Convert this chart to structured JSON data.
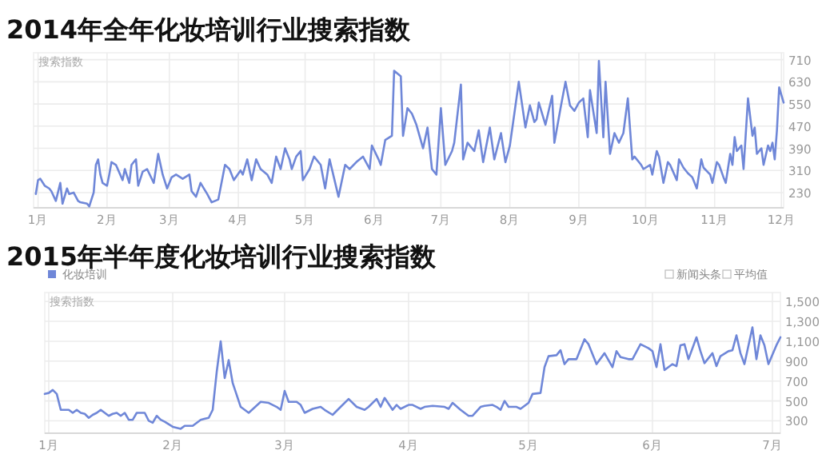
{
  "chart_data": [
    {
      "type": "line",
      "title": "2014年全年化妆培训行业搜索指数",
      "ylabel": "搜索指数",
      "grid": true,
      "xlim": [
        "2013-12-30",
        "2014-12-02"
      ],
      "ylim": [
        175,
        735
      ],
      "xticks": [
        {
          "value": "2014-01-01",
          "label": "1月"
        },
        {
          "value": "2014-02-01",
          "label": "2月"
        },
        {
          "value": "2014-03-01",
          "label": "3月"
        },
        {
          "value": "2014-04-01",
          "label": "4月"
        },
        {
          "value": "2014-05-01",
          "label": "5月"
        },
        {
          "value": "2014-06-01",
          "label": "6月"
        },
        {
          "value": "2014-07-01",
          "label": "7月"
        },
        {
          "value": "2014-08-01",
          "label": "8月"
        },
        {
          "value": "2014-09-01",
          "label": "9月"
        },
        {
          "value": "2014-10-01",
          "label": "10月"
        },
        {
          "value": "2014-11-01",
          "label": "11月"
        },
        {
          "value": "2014-12-01",
          "label": "12月"
        }
      ],
      "yticks": [
        230,
        310,
        390,
        470,
        550,
        630,
        710
      ],
      "x": [
        "2013-12-31",
        "2014-01-01",
        "2014-01-02",
        "2014-01-04",
        "2014-01-06",
        "2014-01-07",
        "2014-01-09",
        "2014-01-11",
        "2014-01-12",
        "2014-01-14",
        "2014-01-15",
        "2014-01-17",
        "2014-01-19",
        "2014-01-20",
        "2014-01-23",
        "2014-01-24",
        "2014-01-26",
        "2014-01-27",
        "2014-01-28",
        "2014-01-29",
        "2014-01-30",
        "2014-02-01",
        "2014-02-02",
        "2014-02-03",
        "2014-02-05",
        "2014-02-08",
        "2014-02-09",
        "2014-02-11",
        "2014-02-12",
        "2014-02-14",
        "2014-02-15",
        "2014-02-17",
        "2014-02-19",
        "2014-02-22",
        "2014-02-24",
        "2014-02-26",
        "2014-02-28",
        "2014-03-02",
        "2014-03-04",
        "2014-03-07",
        "2014-03-10",
        "2014-03-11",
        "2014-03-13",
        "2014-03-15",
        "2014-03-18",
        "2014-03-20",
        "2014-03-23",
        "2014-03-26",
        "2014-03-28",
        "2014-03-30",
        "2014-04-02",
        "2014-04-03",
        "2014-04-05",
        "2014-04-07",
        "2014-04-09",
        "2014-04-11",
        "2014-04-14",
        "2014-04-16",
        "2014-04-18",
        "2014-04-20",
        "2014-04-22",
        "2014-04-24",
        "2014-04-25",
        "2014-04-27",
        "2014-04-29",
        "2014-04-30",
        "2014-05-03",
        "2014-05-05",
        "2014-05-08",
        "2014-05-10",
        "2014-05-12",
        "2014-05-16",
        "2014-05-19",
        "2014-05-21",
        "2014-05-24",
        "2014-05-27",
        "2014-05-30",
        "2014-05-31",
        "2014-06-03",
        "2014-06-04",
        "2014-06-06",
        "2014-06-09",
        "2014-06-10",
        "2014-06-13",
        "2014-06-14",
        "2014-06-16",
        "2014-06-18",
        "2014-06-20",
        "2014-06-23",
        "2014-06-25",
        "2014-06-27",
        "2014-06-29",
        "2014-07-01",
        "2014-07-03",
        "2014-07-06",
        "2014-07-07",
        "2014-07-10",
        "2014-07-11",
        "2014-07-13",
        "2014-07-16",
        "2014-07-18",
        "2014-07-20",
        "2014-07-23",
        "2014-07-25",
        "2014-07-28",
        "2014-07-30",
        "2014-08-01",
        "2014-08-03",
        "2014-08-05",
        "2014-08-08",
        "2014-08-10",
        "2014-08-12",
        "2014-08-13",
        "2014-08-14",
        "2014-08-17",
        "2014-08-20",
        "2014-08-21",
        "2014-08-24",
        "2014-08-26",
        "2014-08-28",
        "2014-08-30",
        "2014-09-01",
        "2014-09-03",
        "2014-09-05",
        "2014-09-06",
        "2014-09-09",
        "2014-09-10",
        "2014-09-12",
        "2014-09-13",
        "2014-09-15",
        "2014-09-17",
        "2014-09-19",
        "2014-09-21",
        "2014-09-23",
        "2014-09-25",
        "2014-09-26",
        "2014-09-29",
        "2014-09-30",
        "2014-10-03",
        "2014-10-04",
        "2014-10-06",
        "2014-10-07",
        "2014-10-09",
        "2014-10-11",
        "2014-10-12",
        "2014-10-15",
        "2014-10-16",
        "2014-10-18",
        "2014-10-20",
        "2014-10-22",
        "2014-10-24",
        "2014-10-26",
        "2014-10-27",
        "2014-10-30",
        "2014-10-31",
        "2014-11-02",
        "2014-11-03",
        "2014-11-05",
        "2014-11-06",
        "2014-11-08",
        "2014-11-09",
        "2014-11-10",
        "2014-11-11",
        "2014-11-13",
        "2014-11-14",
        "2014-11-16",
        "2014-11-18",
        "2014-11-19",
        "2014-11-20",
        "2014-11-22",
        "2014-11-23",
        "2014-11-25",
        "2014-11-26",
        "2014-11-27",
        "2014-11-28",
        "2014-11-29",
        "2014-11-30",
        "2014-12-02"
      ],
      "series": [
        {
          "color": "#6f87d8",
          "values": [
            225,
            275,
            280,
            255,
            245,
            235,
            200,
            265,
            190,
            245,
            225,
            230,
            200,
            195,
            190,
            180,
            230,
            330,
            350,
            295,
            265,
            255,
            295,
            340,
            330,
            275,
            315,
            265,
            330,
            350,
            255,
            305,
            315,
            265,
            370,
            295,
            245,
            285,
            295,
            280,
            295,
            235,
            215,
            265,
            225,
            195,
            205,
            330,
            315,
            275,
            310,
            295,
            350,
            275,
            350,
            315,
            295,
            265,
            360,
            315,
            390,
            350,
            315,
            360,
            380,
            275,
            315,
            360,
            330,
            245,
            350,
            215,
            330,
            315,
            340,
            360,
            315,
            400,
            350,
            330,
            420,
            435,
            670,
            650,
            435,
            535,
            515,
            475,
            390,
            465,
            315,
            295,
            535,
            330,
            380,
            410,
            620,
            350,
            410,
            380,
            455,
            340,
            465,
            350,
            445,
            340,
            400,
            515,
            630,
            465,
            545,
            485,
            495,
            555,
            475,
            580,
            410,
            545,
            630,
            545,
            525,
            555,
            570,
            430,
            600,
            445,
            705,
            430,
            630,
            370,
            445,
            410,
            445,
            570,
            350,
            360,
            330,
            315,
            330,
            295,
            380,
            360,
            265,
            340,
            330,
            275,
            350,
            320,
            300,
            285,
            245,
            350,
            320,
            295,
            265,
            340,
            330,
            285,
            265,
            370,
            330,
            430,
            380,
            400,
            315,
            570,
            435,
            465,
            370,
            390,
            330,
            400,
            380,
            410,
            350,
            455,
            610,
            555
          ]
        }
      ]
    },
    {
      "type": "line",
      "title": "2015年半年度化妆培训行业搜索指数",
      "ylabel": "搜索指数",
      "grid": true,
      "legend": "top left",
      "annotations": [
        "新闻头条",
        "平均值"
      ],
      "xlim": [
        "2014-12-31",
        "2015-07-03"
      ],
      "ylim": [
        175,
        1590
      ],
      "xticks": [
        {
          "value": "2015-01-01",
          "label": "1月"
        },
        {
          "value": "2015-02-01",
          "label": "2月"
        },
        {
          "value": "2015-03-01",
          "label": "3月"
        },
        {
          "value": "2015-04-01",
          "label": "4月"
        },
        {
          "value": "2015-05-01",
          "label": "5月"
        },
        {
          "value": "2015-06-01",
          "label": "6月"
        },
        {
          "value": "2015-07-01",
          "label": "7月"
        }
      ],
      "yticks": [
        300,
        500,
        700,
        900,
        {
          "value": 1100,
          "label": "1,100"
        },
        {
          "value": 1300,
          "label": "1,300"
        },
        {
          "value": 1500,
          "label": "1,500"
        }
      ],
      "x": [
        "2014-12-31",
        "2015-01-01",
        "2015-01-02",
        "2015-01-03",
        "2015-01-04",
        "2015-01-05",
        "2015-01-06",
        "2015-01-07",
        "2015-01-08",
        "2015-01-09",
        "2015-01-10",
        "2015-01-11",
        "2015-01-12",
        "2015-01-13",
        "2015-01-14",
        "2015-01-15",
        "2015-01-16",
        "2015-01-17",
        "2015-01-18",
        "2015-01-19",
        "2015-01-20",
        "2015-01-21",
        "2015-01-22",
        "2015-01-23",
        "2015-01-25",
        "2015-01-26",
        "2015-01-27",
        "2015-01-28",
        "2015-01-29",
        "2015-01-30",
        "2015-02-01",
        "2015-02-03",
        "2015-02-04",
        "2015-02-06",
        "2015-02-07",
        "2015-02-08",
        "2015-02-10",
        "2015-02-11",
        "2015-02-12",
        "2015-02-13",
        "2015-02-14",
        "2015-02-15",
        "2015-02-16",
        "2015-02-18",
        "2015-02-20",
        "2015-02-23",
        "2015-02-25",
        "2015-02-27",
        "2015-02-28",
        "2015-03-01",
        "2015-03-02",
        "2015-03-04",
        "2015-03-05",
        "2015-03-06",
        "2015-03-08",
        "2015-03-10",
        "2015-03-11",
        "2015-03-13",
        "2015-03-15",
        "2015-03-17",
        "2015-03-19",
        "2015-03-21",
        "2015-03-22",
        "2015-03-24",
        "2015-03-25",
        "2015-03-26",
        "2015-03-28",
        "2015-03-29",
        "2015-03-30",
        "2015-04-01",
        "2015-04-02",
        "2015-04-04",
        "2015-04-05",
        "2015-04-07",
        "2015-04-10",
        "2015-04-11",
        "2015-04-12",
        "2015-04-14",
        "2015-04-16",
        "2015-04-17",
        "2015-04-19",
        "2015-04-20",
        "2015-04-22",
        "2015-04-23",
        "2015-04-24",
        "2015-04-25",
        "2015-04-26",
        "2015-04-28",
        "2015-04-29",
        "2015-05-01",
        "2015-05-02",
        "2015-05-04",
        "2015-05-05",
        "2015-05-06",
        "2015-05-08",
        "2015-05-09",
        "2015-05-10",
        "2015-05-11",
        "2015-05-13",
        "2015-05-15",
        "2015-05-16",
        "2015-05-18",
        "2015-05-20",
        "2015-05-22",
        "2015-05-23",
        "2015-05-24",
        "2015-05-26",
        "2015-05-27",
        "2015-05-29",
        "2015-05-31",
        "2015-06-01",
        "2015-06-02",
        "2015-06-03",
        "2015-06-04",
        "2015-06-06",
        "2015-06-07",
        "2015-06-08",
        "2015-06-09",
        "2015-06-10",
        "2015-06-12",
        "2015-06-13",
        "2015-06-14",
        "2015-06-16",
        "2015-06-17",
        "2015-06-18",
        "2015-06-20",
        "2015-06-21",
        "2015-06-22",
        "2015-06-23",
        "2015-06-24",
        "2015-06-26",
        "2015-06-27",
        "2015-06-28",
        "2015-06-29",
        "2015-06-30",
        "2015-07-02",
        "2015-07-03"
      ],
      "series": [
        {
          "name": "化妆培训",
          "color": "#6f87d8",
          "values": [
            570,
            580,
            610,
            570,
            410,
            410,
            410,
            380,
            410,
            380,
            370,
            330,
            360,
            380,
            410,
            380,
            350,
            370,
            380,
            350,
            380,
            310,
            310,
            380,
            380,
            300,
            280,
            350,
            310,
            290,
            240,
            220,
            250,
            250,
            280,
            310,
            330,
            410,
            790,
            1100,
            730,
            910,
            680,
            440,
            380,
            490,
            480,
            440,
            410,
            600,
            490,
            490,
            460,
            380,
            420,
            440,
            410,
            360,
            440,
            520,
            440,
            410,
            440,
            520,
            440,
            530,
            410,
            460,
            420,
            460,
            460,
            420,
            440,
            450,
            440,
            420,
            480,
            410,
            350,
            350,
            440,
            450,
            460,
            440,
            410,
            500,
            440,
            440,
            420,
            480,
            570,
            580,
            840,
            950,
            960,
            1010,
            870,
            920,
            920,
            1120,
            1070,
            870,
            980,
            840,
            1000,
            940,
            920,
            920,
            1070,
            1030,
            1000,
            840,
            1070,
            810,
            870,
            850,
            1060,
            1070,
            920,
            1140,
            1000,
            880,
            980,
            850,
            950,
            1000,
            1010,
            1160,
            980,
            870,
            1240,
            920,
            1160,
            1060,
            870,
            1060,
            1140
          ]
        }
      ]
    }
  ]
}
